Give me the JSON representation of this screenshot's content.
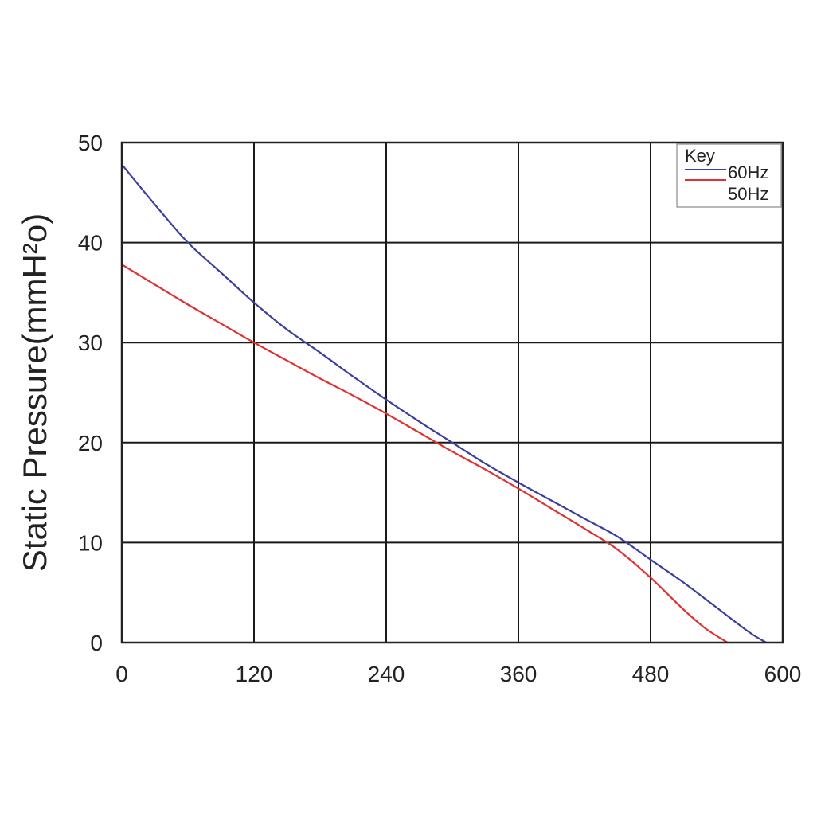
{
  "chart_data": {
    "type": "line",
    "title": "",
    "xlabel": "",
    "ylabel": "Static Pressure(mmH²o)",
    "xlim": [
      0,
      600
    ],
    "ylim": [
      0,
      50
    ],
    "x_ticks": [
      "0",
      "120",
      "240",
      "360",
      "480",
      "600"
    ],
    "y_ticks": [
      "0",
      "10",
      "20",
      "30",
      "40",
      "50"
    ],
    "grid": true,
    "legend": {
      "title": "Key",
      "position": "top-right"
    },
    "series": [
      {
        "name": "60Hz",
        "color": "#3a3f9e",
        "x": [
          0,
          30,
          60,
          90,
          120,
          150,
          180,
          210,
          240,
          270,
          300,
          330,
          360,
          390,
          420,
          450,
          480,
          510,
          540,
          570,
          585
        ],
        "y": [
          47.8,
          43.8,
          40.0,
          37.0,
          34.0,
          31.3,
          29.0,
          26.6,
          24.3,
          22.1,
          20.0,
          17.9,
          16.0,
          14.2,
          12.4,
          10.6,
          8.3,
          6.0,
          3.5,
          1.0,
          0.0
        ]
      },
      {
        "name": "50Hz",
        "color": "#e03030",
        "x": [
          0,
          30,
          60,
          90,
          120,
          150,
          180,
          210,
          240,
          270,
          300,
          330,
          360,
          390,
          420,
          450,
          480,
          510,
          530,
          550
        ],
        "y": [
          37.8,
          35.8,
          33.8,
          31.9,
          30.0,
          28.2,
          26.4,
          24.7,
          22.9,
          21.0,
          19.1,
          17.3,
          15.4,
          13.4,
          11.4,
          9.3,
          6.5,
          3.3,
          1.4,
          0.0
        ]
      }
    ]
  }
}
